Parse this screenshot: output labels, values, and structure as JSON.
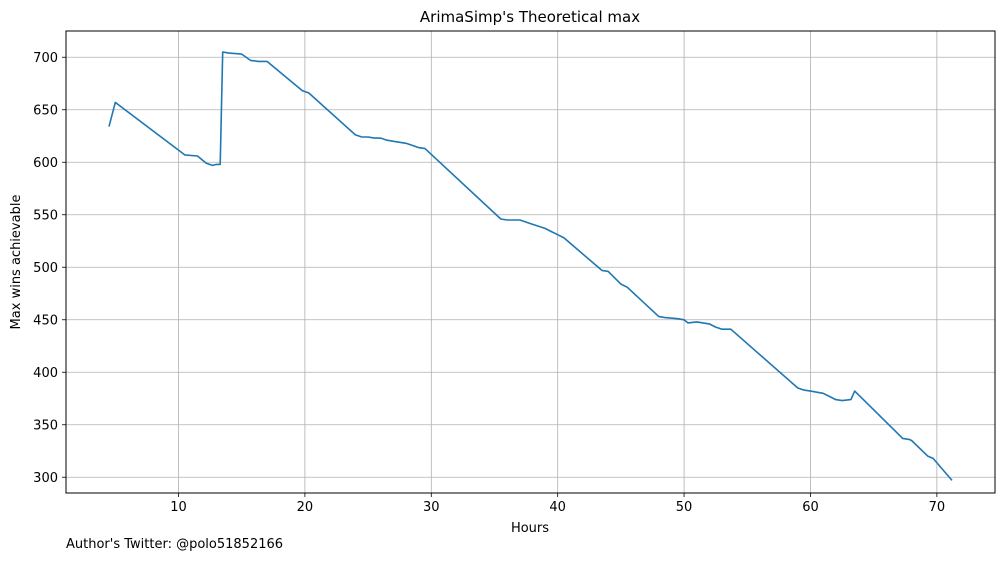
{
  "footer": {
    "credit": "Author's Twitter: @polo51852166"
  },
  "chart_data": {
    "type": "line",
    "title": "ArimaSimp's Theoretical max",
    "xlabel": "Hours",
    "ylabel": "Max wins achievable",
    "xlim": [
      1.1,
      74.6
    ],
    "ylim": [
      285,
      725
    ],
    "xticks": [
      10,
      20,
      30,
      40,
      50,
      60,
      70
    ],
    "yticks": [
      300,
      350,
      400,
      450,
      500,
      550,
      600,
      650,
      700
    ],
    "grid": true,
    "line_color": "#1f77b4",
    "series": [
      {
        "x": [
          4.5,
          5.0,
          10.5,
          11.5,
          12.2,
          12.7,
          13.0,
          13.3,
          13.5,
          14.0,
          15.0,
          15.7,
          16.3,
          17.0,
          19.8,
          20.3,
          24.0,
          24.5,
          25.0,
          25.5,
          26.0,
          26.5,
          27.0,
          27.5,
          28.0,
          28.5,
          29.0,
          29.5,
          35.5,
          36.0,
          37.0,
          37.5,
          38.0,
          39.0,
          39.5,
          40.0,
          40.5,
          43.5,
          44.0,
          45.0,
          45.5,
          48.0,
          48.5,
          49.5,
          50.0,
          50.3,
          51.0,
          52.0,
          52.5,
          53.0,
          53.7,
          59.0,
          59.5,
          60.0,
          61.0,
          61.5,
          62.0,
          62.5,
          63.2,
          63.5,
          67.3,
          67.8,
          68.0,
          69.3,
          69.7,
          71.2
        ],
        "y": [
          634,
          657,
          607,
          606,
          599,
          597,
          598,
          598,
          705,
          704,
          703,
          697,
          696,
          696,
          668,
          666,
          626,
          624,
          624,
          623,
          623,
          621,
          620,
          619,
          618,
          616,
          614,
          613,
          546,
          545,
          545,
          543,
          541,
          537,
          534,
          531,
          528,
          497,
          496,
          484,
          481,
          453,
          452,
          451,
          450,
          447,
          448,
          446,
          443,
          441,
          441,
          385,
          383,
          382,
          380,
          377,
          374,
          373,
          374,
          382,
          337,
          336,
          335,
          320,
          318,
          297
        ]
      }
    ]
  }
}
